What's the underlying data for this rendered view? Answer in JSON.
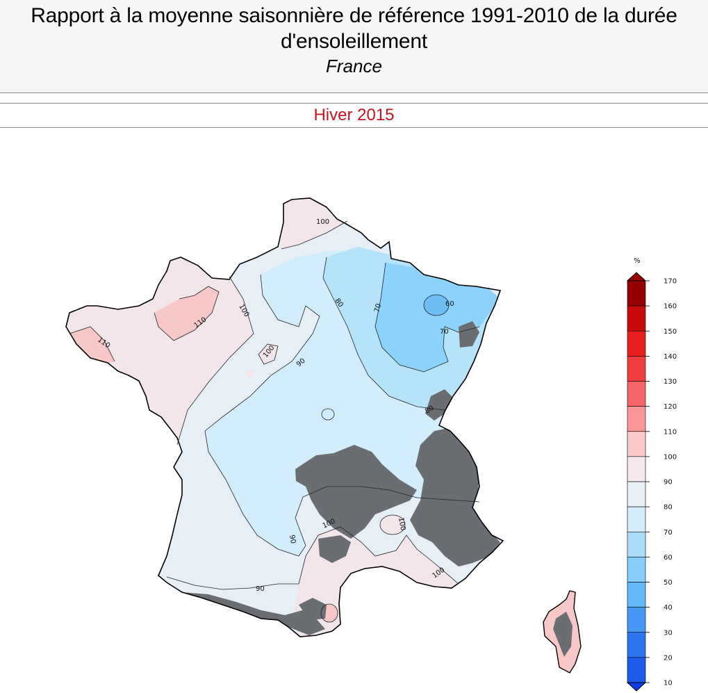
{
  "header": {
    "title_line1": "Rapport à la moyenne saisonnière de référence 1991-2010 de la durée",
    "title_line2": "d'ensoleillement",
    "subtitle": "France"
  },
  "season": "Hiver 2015",
  "colors": {
    "band_60_70": "#8cd2fa",
    "band_70_80": "#b4e3fa",
    "band_80_90": "#d2eefc",
    "band_90_100": "#e6eef6",
    "band_100_110": "#f2e6ea",
    "band_110_120": "#f8c8c8",
    "band_50_60": "#6ebef5",
    "relief": "#6a6e72"
  },
  "map": {
    "contour_labels": [
      "100",
      "110",
      "110",
      "100",
      "100",
      "90",
      "80",
      "70",
      "60",
      "70",
      "80",
      "90",
      "100",
      "100",
      "100",
      "90"
    ]
  },
  "legend": {
    "unit": "%",
    "levels": [
      "170",
      "160",
      "150",
      "140",
      "130",
      "120",
      "110",
      "100",
      "90",
      "80",
      "70",
      "60",
      "50",
      "40",
      "30",
      "20",
      "10"
    ],
    "colors": [
      "#960000",
      "#c80a0a",
      "#eb1e1e",
      "#f03c3c",
      "#f56464",
      "#fa9696",
      "#fac8c8",
      "#f4e8ec",
      "#e8eef6",
      "#d2eefc",
      "#aadcfa",
      "#87cefa",
      "#64b9fa",
      "#4696f5",
      "#2d78f0",
      "#1e5aeb",
      "#0a3ceb"
    ]
  }
}
